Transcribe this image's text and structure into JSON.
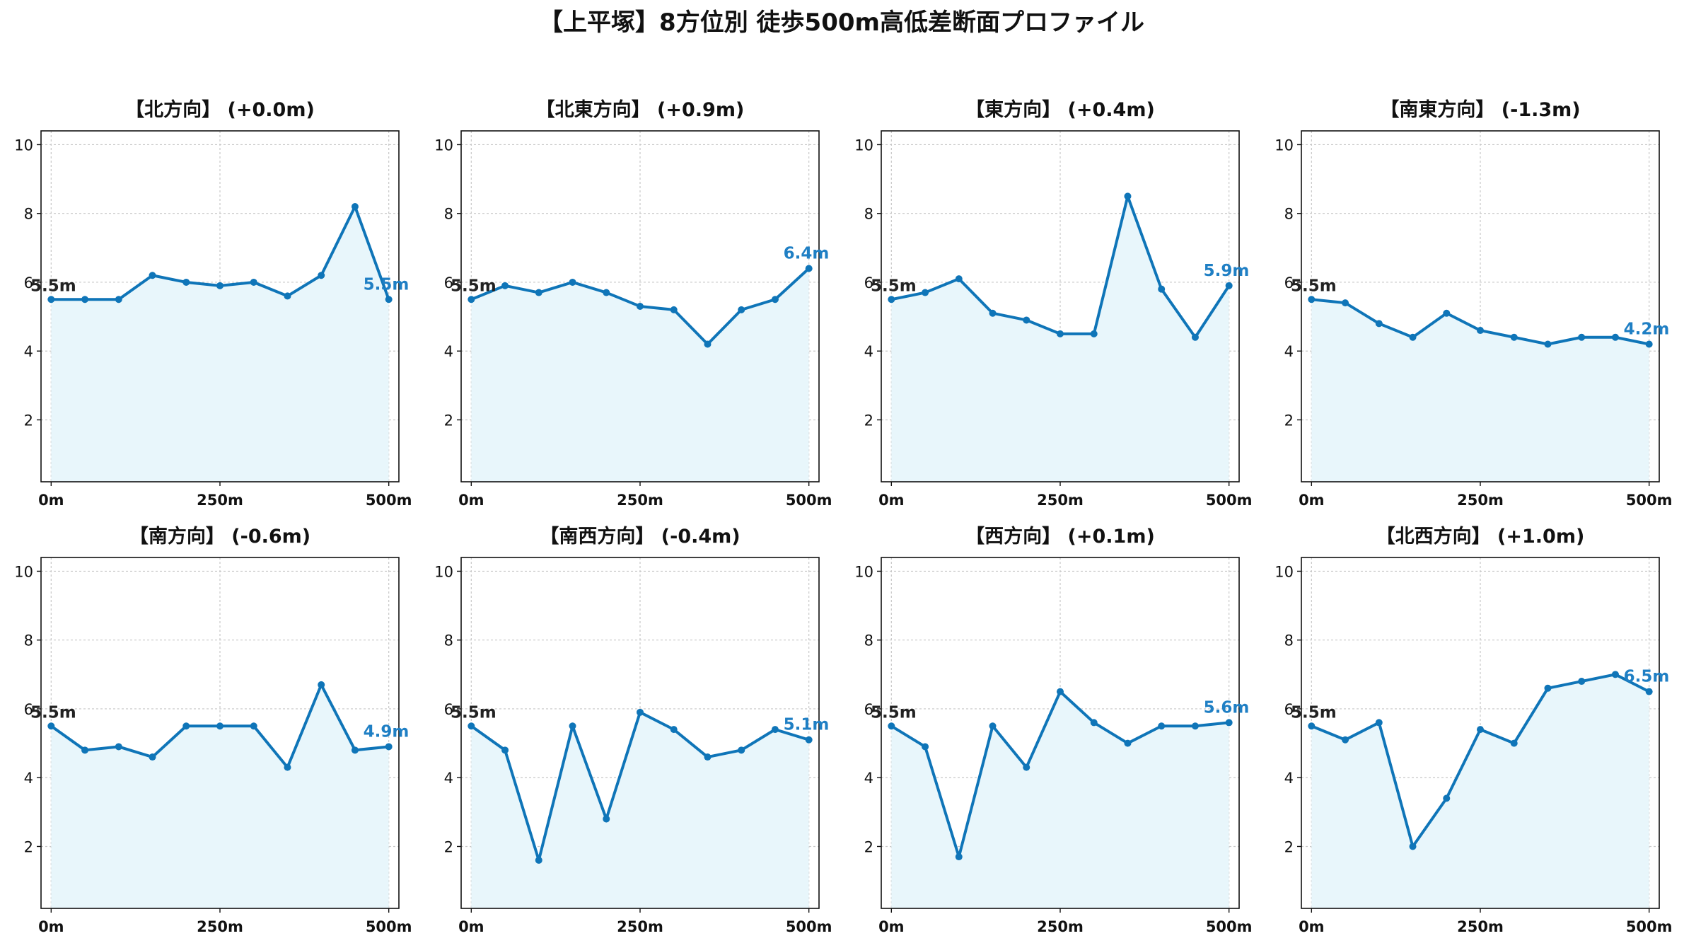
{
  "figure_title": "【上平塚】8方位別 徒歩500m高低差断面プロファイル",
  "colors": {
    "line": "#0f75b8",
    "fill": "#e8f6fb",
    "label_end": "#1f7fc4",
    "label_start": "#222222",
    "grid": "#c8c8c8"
  },
  "chart_data": [
    {
      "type": "area",
      "title": "【北方向】 (+0.0m)",
      "x": [
        0,
        50,
        100,
        150,
        200,
        250,
        300,
        350,
        400,
        450,
        500
      ],
      "values": [
        5.5,
        5.5,
        5.5,
        6.2,
        6.0,
        5.9,
        6.0,
        5.6,
        6.2,
        8.2,
        5.5
      ],
      "start_label": "5.5m",
      "end_label": "5.5m",
      "xticks": [
        "0m",
        "250m",
        "500m"
      ],
      "yticks": [
        "2",
        "4",
        "6",
        "8",
        "10"
      ],
      "xlim": [
        -15,
        515
      ],
      "ylim": [
        0.2,
        10.4
      ],
      "grid": true
    },
    {
      "type": "area",
      "title": "【北東方向】 (+0.9m)",
      "x": [
        0,
        50,
        100,
        150,
        200,
        250,
        300,
        350,
        400,
        450,
        500
      ],
      "values": [
        5.5,
        5.9,
        5.7,
        6.0,
        5.7,
        5.3,
        5.2,
        4.2,
        5.2,
        5.5,
        6.4
      ],
      "start_label": "5.5m",
      "end_label": "6.4m",
      "xticks": [
        "0m",
        "250m",
        "500m"
      ],
      "yticks": [
        "2",
        "4",
        "6",
        "8",
        "10"
      ],
      "xlim": [
        -15,
        515
      ],
      "ylim": [
        0.2,
        10.4
      ],
      "grid": true
    },
    {
      "type": "area",
      "title": "【東方向】 (+0.4m)",
      "x": [
        0,
        50,
        100,
        150,
        200,
        250,
        300,
        350,
        400,
        450,
        500
      ],
      "values": [
        5.5,
        5.7,
        6.1,
        5.1,
        4.9,
        4.5,
        4.5,
        8.5,
        5.8,
        4.4,
        5.9
      ],
      "start_label": "5.5m",
      "end_label": "5.9m",
      "xticks": [
        "0m",
        "250m",
        "500m"
      ],
      "yticks": [
        "2",
        "4",
        "6",
        "8",
        "10"
      ],
      "xlim": [
        -15,
        515
      ],
      "ylim": [
        0.2,
        10.4
      ],
      "grid": true
    },
    {
      "type": "area",
      "title": "【南東方向】 (-1.3m)",
      "x": [
        0,
        50,
        100,
        150,
        200,
        250,
        300,
        350,
        400,
        450,
        500
      ],
      "values": [
        5.5,
        5.4,
        4.8,
        4.4,
        5.1,
        4.6,
        4.4,
        4.2,
        4.4,
        4.4,
        4.2
      ],
      "start_label": "5.5m",
      "end_label": "4.2m",
      "xticks": [
        "0m",
        "250m",
        "500m"
      ],
      "yticks": [
        "2",
        "4",
        "6",
        "8",
        "10"
      ],
      "xlim": [
        -15,
        515
      ],
      "ylim": [
        0.2,
        10.4
      ],
      "grid": true
    },
    {
      "type": "area",
      "title": "【南方向】 (-0.6m)",
      "x": [
        0,
        50,
        100,
        150,
        200,
        250,
        300,
        350,
        400,
        450,
        500
      ],
      "values": [
        5.5,
        4.8,
        4.9,
        4.6,
        5.5,
        5.5,
        5.5,
        4.3,
        6.7,
        4.8,
        4.9
      ],
      "start_label": "5.5m",
      "end_label": "4.9m",
      "xticks": [
        "0m",
        "250m",
        "500m"
      ],
      "yticks": [
        "2",
        "4",
        "6",
        "8",
        "10"
      ],
      "xlim": [
        -15,
        515
      ],
      "ylim": [
        0.2,
        10.4
      ],
      "grid": true
    },
    {
      "type": "area",
      "title": "【南西方向】 (-0.4m)",
      "x": [
        0,
        50,
        100,
        150,
        200,
        250,
        300,
        350,
        400,
        450,
        500
      ],
      "values": [
        5.5,
        4.8,
        1.6,
        5.5,
        2.8,
        5.9,
        5.4,
        4.6,
        4.8,
        5.4,
        5.1
      ],
      "start_label": "5.5m",
      "end_label": "5.1m",
      "xticks": [
        "0m",
        "250m",
        "500m"
      ],
      "yticks": [
        "2",
        "4",
        "6",
        "8",
        "10"
      ],
      "xlim": [
        -15,
        515
      ],
      "ylim": [
        0.2,
        10.4
      ],
      "grid": true
    },
    {
      "type": "area",
      "title": "【西方向】 (+0.1m)",
      "x": [
        0,
        50,
        100,
        150,
        200,
        250,
        300,
        350,
        400,
        450,
        500
      ],
      "values": [
        5.5,
        4.9,
        1.7,
        5.5,
        4.3,
        6.5,
        5.6,
        5.0,
        5.5,
        5.5,
        5.6
      ],
      "start_label": "5.5m",
      "end_label": "5.6m",
      "xticks": [
        "0m",
        "250m",
        "500m"
      ],
      "yticks": [
        "2",
        "4",
        "6",
        "8",
        "10"
      ],
      "xlim": [
        -15,
        515
      ],
      "ylim": [
        0.2,
        10.4
      ],
      "grid": true
    },
    {
      "type": "area",
      "title": "【北西方向】 (+1.0m)",
      "x": [
        0,
        50,
        100,
        150,
        200,
        250,
        300,
        350,
        400,
        450,
        500
      ],
      "values": [
        5.5,
        5.1,
        5.6,
        2.0,
        3.4,
        5.4,
        5.0,
        6.6,
        6.8,
        7.0,
        6.5
      ],
      "start_label": "5.5m",
      "end_label": "6.5m",
      "xticks": [
        "0m",
        "250m",
        "500m"
      ],
      "yticks": [
        "2",
        "4",
        "6",
        "8",
        "10"
      ],
      "xlim": [
        -15,
        515
      ],
      "ylim": [
        0.2,
        10.4
      ],
      "grid": true
    }
  ]
}
